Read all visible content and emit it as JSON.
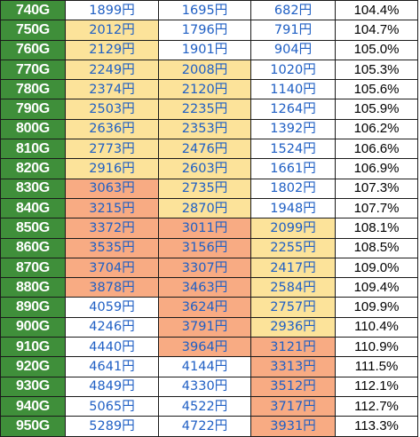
{
  "colors": {
    "games_cell": "#3f8f3a",
    "value_text": "#1f5fc4",
    "yellow_highlight": "#fce39a",
    "orange_highlight": "#f8ab83",
    "grid_line": "#1a1a1a"
  },
  "table": {
    "rows": [
      {
        "games": "740G",
        "c1": "1899円",
        "c2": "1695円",
        "c3": "682円",
        "pct": "104.4%",
        "h": [
          "w",
          "w",
          "w"
        ]
      },
      {
        "games": "750G",
        "c1": "2012円",
        "c2": "1796円",
        "c3": "791円",
        "pct": "104.7%",
        "h": [
          "y",
          "w",
          "w"
        ]
      },
      {
        "games": "760G",
        "c1": "2129円",
        "c2": "1901円",
        "c3": "904円",
        "pct": "105.0%",
        "h": [
          "y",
          "w",
          "w"
        ]
      },
      {
        "games": "770G",
        "c1": "2249円",
        "c2": "2008円",
        "c3": "1020円",
        "pct": "105.3%",
        "h": [
          "y",
          "y",
          "w"
        ]
      },
      {
        "games": "780G",
        "c1": "2374円",
        "c2": "2120円",
        "c3": "1140円",
        "pct": "105.6%",
        "h": [
          "y",
          "y",
          "w"
        ]
      },
      {
        "games": "790G",
        "c1": "2503円",
        "c2": "2235円",
        "c3": "1264円",
        "pct": "105.9%",
        "h": [
          "y",
          "y",
          "w"
        ]
      },
      {
        "games": "800G",
        "c1": "2636円",
        "c2": "2353円",
        "c3": "1392円",
        "pct": "106.2%",
        "h": [
          "y",
          "y",
          "w"
        ]
      },
      {
        "games": "810G",
        "c1": "2773円",
        "c2": "2476円",
        "c3": "1524円",
        "pct": "106.6%",
        "h": [
          "y",
          "y",
          "w"
        ]
      },
      {
        "games": "820G",
        "c1": "2916円",
        "c2": "2603円",
        "c3": "1661円",
        "pct": "106.9%",
        "h": [
          "y",
          "y",
          "w"
        ]
      },
      {
        "games": "830G",
        "c1": "3063円",
        "c2": "2735円",
        "c3": "1802円",
        "pct": "107.3%",
        "h": [
          "o",
          "y",
          "w"
        ]
      },
      {
        "games": "840G",
        "c1": "3215円",
        "c2": "2870円",
        "c3": "1948円",
        "pct": "107.7%",
        "h": [
          "o",
          "y",
          "w"
        ]
      },
      {
        "games": "850G",
        "c1": "3372円",
        "c2": "3011円",
        "c3": "2099円",
        "pct": "108.1%",
        "h": [
          "o",
          "o",
          "y"
        ]
      },
      {
        "games": "860G",
        "c1": "3535円",
        "c2": "3156円",
        "c3": "2255円",
        "pct": "108.5%",
        "h": [
          "o",
          "o",
          "y"
        ]
      },
      {
        "games": "870G",
        "c1": "3704円",
        "c2": "3307円",
        "c3": "2417円",
        "pct": "109.0%",
        "h": [
          "o",
          "o",
          "y"
        ]
      },
      {
        "games": "880G",
        "c1": "3878円",
        "c2": "3463円",
        "c3": "2584円",
        "pct": "109.4%",
        "h": [
          "o",
          "o",
          "y"
        ]
      },
      {
        "games": "890G",
        "c1": "4059円",
        "c2": "3624円",
        "c3": "2757円",
        "pct": "109.9%",
        "h": [
          "w",
          "o",
          "y"
        ]
      },
      {
        "games": "900G",
        "c1": "4246円",
        "c2": "3791円",
        "c3": "2936円",
        "pct": "110.4%",
        "h": [
          "w",
          "o",
          "y"
        ]
      },
      {
        "games": "910G",
        "c1": "4440円",
        "c2": "3964円",
        "c3": "3121円",
        "pct": "110.9%",
        "h": [
          "w",
          "o",
          "o"
        ]
      },
      {
        "games": "920G",
        "c1": "4641円",
        "c2": "4144円",
        "c3": "3313円",
        "pct": "111.5%",
        "h": [
          "w",
          "w",
          "o"
        ]
      },
      {
        "games": "930G",
        "c1": "4849円",
        "c2": "4330円",
        "c3": "3512円",
        "pct": "112.1%",
        "h": [
          "w",
          "w",
          "o"
        ]
      },
      {
        "games": "940G",
        "c1": "5065円",
        "c2": "4522円",
        "c3": "3717円",
        "pct": "112.7%",
        "h": [
          "w",
          "w",
          "o"
        ]
      },
      {
        "games": "950G",
        "c1": "5289円",
        "c2": "4722円",
        "c3": "3931円",
        "pct": "113.3%",
        "h": [
          "w",
          "w",
          "o"
        ]
      }
    ]
  }
}
